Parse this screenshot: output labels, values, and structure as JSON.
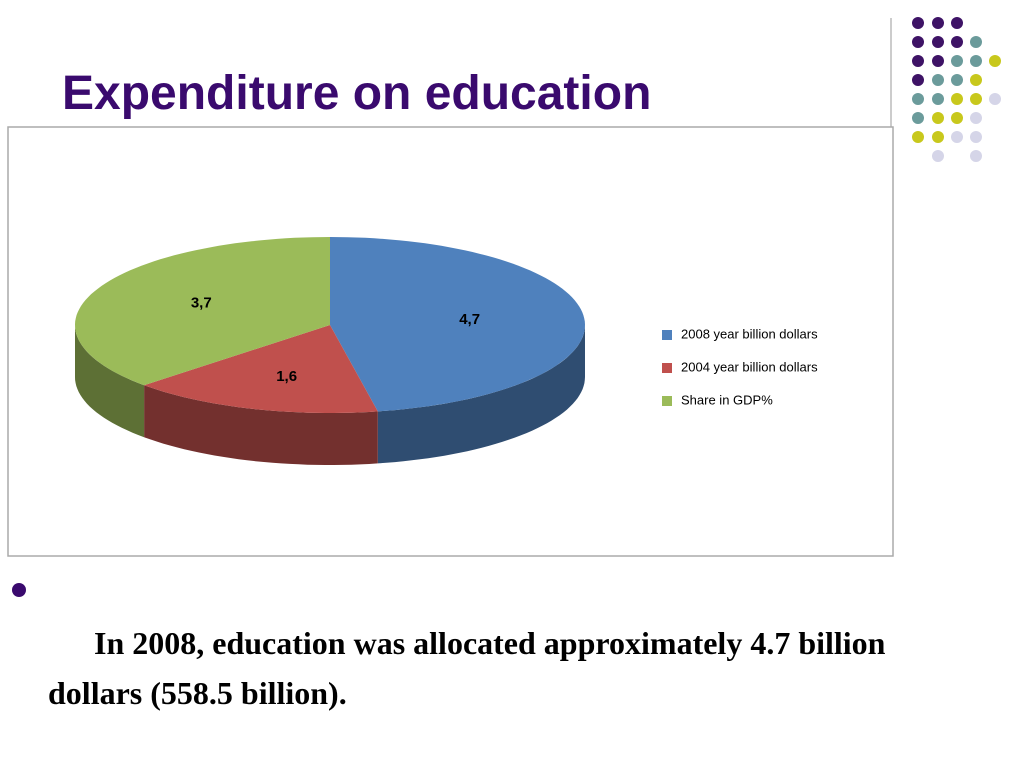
{
  "slide": {
    "text": "In 2008, education was allocated approximately 4.7 billion dollars (558.5 billion)."
  },
  "chart_data": {
    "type": "pie",
    "title": "Expenditure on education",
    "categories": [
      "2008 year billion dollars",
      "2004 year billion dollars",
      "Share in GDP%"
    ],
    "values": [
      4.7,
      1.6,
      3.7
    ],
    "value_labels": [
      "4,7",
      "1,6",
      "3,7"
    ],
    "colors": [
      "#4f81bd",
      "#c0504d",
      "#9bbb59"
    ],
    "legend": "right"
  }
}
